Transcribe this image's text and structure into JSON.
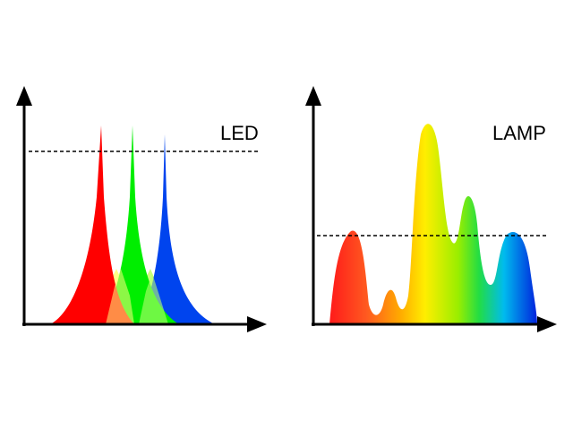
{
  "panels": [
    {
      "id": "led",
      "label": "LED",
      "description_colors": {
        "red": "#ff0000",
        "green": "#00ee00",
        "blue": "#0044ff",
        "yellow_overlap": "#ffff80",
        "light_green_overlap": "#c8ff78"
      },
      "peaks": [
        "red",
        "green",
        "blue"
      ]
    },
    {
      "id": "lamp",
      "label": "LAMP",
      "spectrum_colors": [
        "#ff1a1a",
        "#ff8800",
        "#ffee00",
        "#88ee00",
        "#00dd66",
        "#00aaff",
        "#0022dd"
      ]
    }
  ],
  "axes": {
    "color": "#000000"
  },
  "threshold_line": {
    "style": "dashed",
    "color": "#000000"
  }
}
